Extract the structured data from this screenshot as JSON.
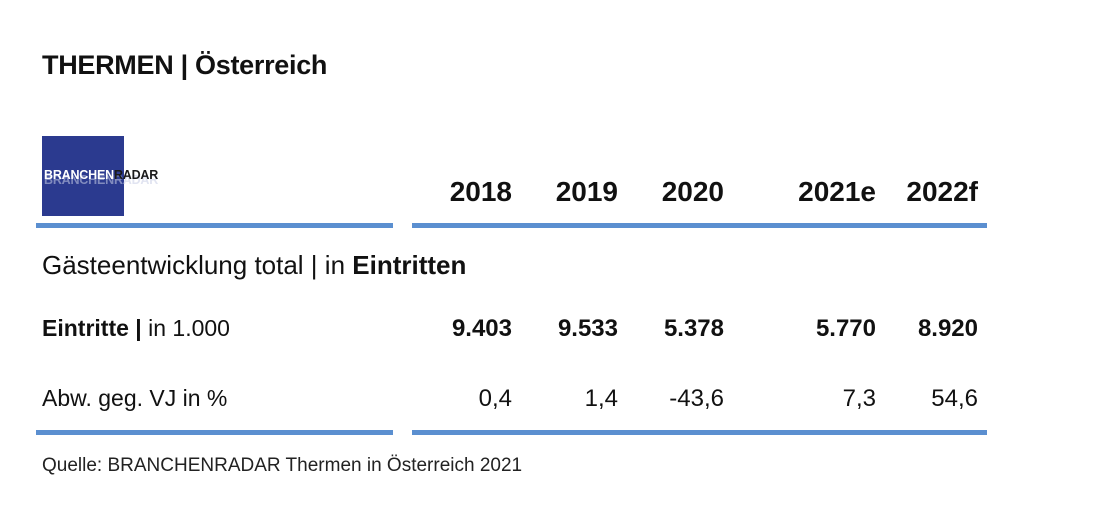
{
  "title": "THERMEN | Österreich",
  "logo": {
    "part1": "BRANCHEN",
    "part2": "RADAR",
    "color": "#2b3a8f"
  },
  "section": {
    "prefix": "Gästeentwicklung total | in ",
    "bold": "Eintritten"
  },
  "source": "Quelle: BRANCHENRADAR Thermen in Österreich 2021",
  "chart_data": {
    "type": "table",
    "title": "THERMEN | Österreich",
    "columns": [
      "2018",
      "2019",
      "2020",
      "2021e",
      "2022f"
    ],
    "rows": [
      {
        "label_bold": "Eintritte |",
        "label_rest": " in 1.000",
        "values": [
          "9.403",
          "9.533",
          "5.378",
          "5.770",
          "8.920"
        ]
      },
      {
        "label_bold": "",
        "label_rest": "Abw. geg. VJ in %",
        "values": [
          "0,4",
          "1,4",
          "-43,6",
          "7,3",
          "54,6"
        ]
      }
    ],
    "accent_color": "#5b8fd0"
  }
}
